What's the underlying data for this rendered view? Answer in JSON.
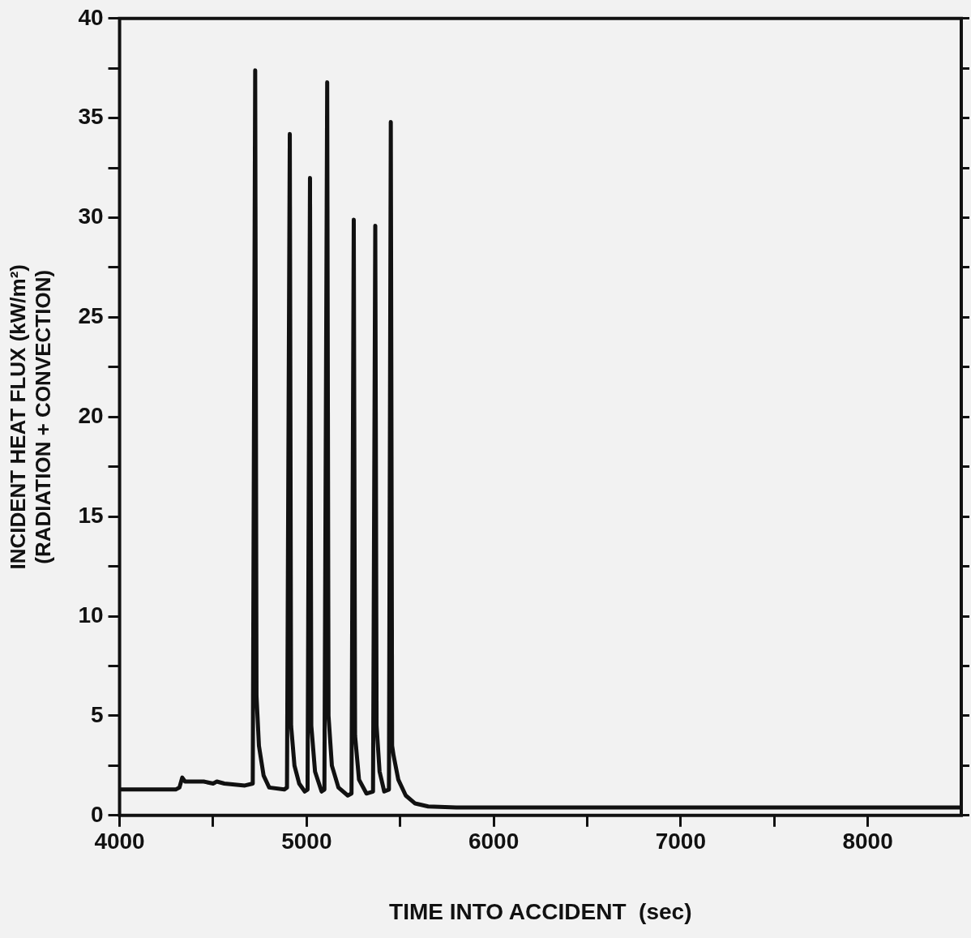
{
  "chart_data": {
    "type": "line",
    "xlabel": "TIME INTO ACCIDENT  (sec)",
    "ylabel": "INCIDENT HEAT FLUX (kW/m²)\n(RADIATION + CONVECTION)",
    "xlim": [
      4000,
      8500
    ],
    "ylim": [
      0,
      40
    ],
    "xticks": [
      4000,
      {
        "value": 4500,
        "label": null
      },
      5000,
      {
        "value": 5500,
        "label": null
      },
      6000,
      {
        "value": 6500,
        "label": null
      },
      7000,
      {
        "value": 7500,
        "label": null
      },
      8000
    ],
    "yticks": [
      0,
      {
        "value": 2.5,
        "label": null
      },
      5,
      {
        "value": 7.5,
        "label": null
      },
      10,
      {
        "value": 12.5,
        "label": null
      },
      15,
      {
        "value": 17.5,
        "label": null
      },
      20,
      {
        "value": 22.5,
        "label": null
      },
      25,
      {
        "value": 27.5,
        "label": null
      },
      30,
      {
        "value": 32.5,
        "label": null
      },
      35,
      {
        "value": 37.5,
        "label": null
      },
      40
    ],
    "grid": false,
    "legend": false,
    "marker": "none",
    "line_style": "solid",
    "series": [
      {
        "color": "#111111",
        "x": [
          4000,
          4300,
          4320,
          4335,
          4350,
          4450,
          4500,
          4520,
          4560,
          4670,
          4712,
          4725,
          4732,
          4745,
          4770,
          4800,
          4880,
          4895,
          4910,
          4917,
          4935,
          4960,
          4990,
          5005,
          5018,
          5025,
          5045,
          5080,
          5095,
          5110,
          5117,
          5135,
          5170,
          5220,
          5240,
          5252,
          5259,
          5280,
          5320,
          5355,
          5367,
          5374,
          5390,
          5415,
          5440,
          5450,
          5457,
          5465,
          5490,
          5530,
          5580,
          5650,
          5800,
          8500
        ],
        "values": [
          1.3,
          1.3,
          1.4,
          1.9,
          1.7,
          1.7,
          1.6,
          1.7,
          1.6,
          1.5,
          1.6,
          37.4,
          6,
          3.5,
          2,
          1.4,
          1.3,
          1.4,
          34.2,
          4.5,
          2.5,
          1.6,
          1.2,
          1.3,
          32.0,
          4.5,
          2.2,
          1.2,
          1.3,
          36.8,
          5,
          2.5,
          1.4,
          1.0,
          1.1,
          29.9,
          4,
          1.8,
          1.1,
          1.2,
          29.6,
          4.5,
          2.2,
          1.2,
          1.3,
          34.8,
          3.5,
          3.0,
          1.8,
          1.0,
          0.6,
          0.45,
          0.4,
          0.4
        ]
      }
    ]
  }
}
